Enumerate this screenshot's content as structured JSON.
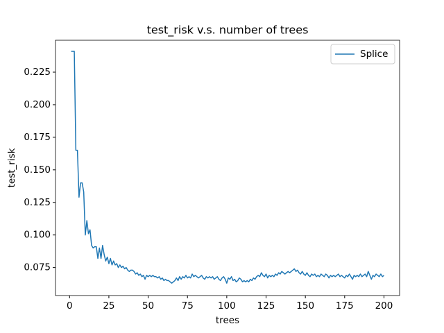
{
  "chart_data": {
    "type": "line",
    "title": "test_risk v.s. number of trees",
    "x_label": "trees",
    "y_label": "test_risk",
    "x": [
      1,
      2,
      3,
      4,
      5,
      6,
      7,
      8,
      9,
      10,
      11,
      12,
      13,
      14,
      15,
      16,
      17,
      18,
      19,
      20,
      21,
      22,
      23,
      24,
      25,
      26,
      27,
      28,
      29,
      30,
      31,
      32,
      33,
      34,
      35,
      36,
      37,
      38,
      39,
      40,
      41,
      42,
      43,
      44,
      45,
      46,
      47,
      48,
      49,
      50,
      51,
      52,
      53,
      54,
      55,
      56,
      57,
      58,
      59,
      60,
      61,
      62,
      63,
      64,
      65,
      66,
      67,
      68,
      69,
      70,
      71,
      72,
      73,
      74,
      75,
      76,
      77,
      78,
      79,
      80,
      81,
      82,
      83,
      84,
      85,
      86,
      87,
      88,
      89,
      90,
      91,
      92,
      93,
      94,
      95,
      96,
      97,
      98,
      99,
      100,
      101,
      102,
      103,
      104,
      105,
      106,
      107,
      108,
      109,
      110,
      111,
      112,
      113,
      114,
      115,
      116,
      117,
      118,
      119,
      120,
      121,
      122,
      123,
      124,
      125,
      126,
      127,
      128,
      129,
      130,
      131,
      132,
      133,
      134,
      135,
      136,
      137,
      138,
      139,
      140,
      141,
      142,
      143,
      144,
      145,
      146,
      147,
      148,
      149,
      150,
      151,
      152,
      153,
      154,
      155,
      156,
      157,
      158,
      159,
      160,
      161,
      162,
      163,
      164,
      165,
      166,
      167,
      168,
      169,
      170,
      171,
      172,
      173,
      174,
      175,
      176,
      177,
      178,
      179,
      180,
      181,
      182,
      183,
      184,
      185,
      186,
      187,
      188,
      189,
      190,
      191,
      192,
      193,
      194,
      195,
      196,
      197,
      198,
      199,
      200
    ],
    "series": [
      {
        "name": "Splice",
        "color": "#1f77b4",
        "values": [
          0.241,
          0.241,
          0.241,
          0.165,
          0.165,
          0.129,
          0.14,
          0.14,
          0.133,
          0.1,
          0.111,
          0.101,
          0.104,
          0.092,
          0.09,
          0.091,
          0.091,
          0.082,
          0.09,
          0.082,
          0.092,
          0.085,
          0.08,
          0.083,
          0.078,
          0.082,
          0.077,
          0.08,
          0.077,
          0.078,
          0.075,
          0.077,
          0.075,
          0.076,
          0.074,
          0.075,
          0.073,
          0.072,
          0.073,
          0.073,
          0.072,
          0.07,
          0.071,
          0.069,
          0.07,
          0.068,
          0.069,
          0.066,
          0.069,
          0.068,
          0.069,
          0.068,
          0.069,
          0.068,
          0.068,
          0.067,
          0.068,
          0.066,
          0.067,
          0.065,
          0.066,
          0.065,
          0.065,
          0.064,
          0.063,
          0.064,
          0.065,
          0.067,
          0.065,
          0.068,
          0.066,
          0.068,
          0.067,
          0.069,
          0.067,
          0.068,
          0.067,
          0.07,
          0.068,
          0.069,
          0.068,
          0.067,
          0.068,
          0.069,
          0.067,
          0.066,
          0.068,
          0.067,
          0.068,
          0.067,
          0.068,
          0.066,
          0.067,
          0.068,
          0.066,
          0.065,
          0.067,
          0.068,
          0.066,
          0.063,
          0.067,
          0.066,
          0.068,
          0.065,
          0.066,
          0.064,
          0.065,
          0.067,
          0.066,
          0.064,
          0.065,
          0.064,
          0.065,
          0.064,
          0.066,
          0.065,
          0.067,
          0.066,
          0.068,
          0.069,
          0.068,
          0.071,
          0.069,
          0.068,
          0.07,
          0.067,
          0.069,
          0.068,
          0.069,
          0.068,
          0.07,
          0.069,
          0.071,
          0.07,
          0.072,
          0.071,
          0.07,
          0.071,
          0.072,
          0.071,
          0.072,
          0.073,
          0.074,
          0.072,
          0.073,
          0.071,
          0.07,
          0.072,
          0.07,
          0.069,
          0.071,
          0.069,
          0.068,
          0.07,
          0.069,
          0.07,
          0.068,
          0.069,
          0.068,
          0.07,
          0.069,
          0.068,
          0.07,
          0.069,
          0.067,
          0.069,
          0.068,
          0.069,
          0.068,
          0.069,
          0.07,
          0.068,
          0.069,
          0.068,
          0.067,
          0.069,
          0.068,
          0.07,
          0.068,
          0.066,
          0.069,
          0.068,
          0.069,
          0.068,
          0.07,
          0.068,
          0.069,
          0.07,
          0.068,
          0.072,
          0.069,
          0.066,
          0.069,
          0.068,
          0.07,
          0.069,
          0.068,
          0.07,
          0.068,
          0.069
        ]
      }
    ],
    "xlim": [
      -8.95,
      209.95
    ],
    "xticks": [
      0,
      25,
      50,
      75,
      100,
      125,
      150,
      175,
      200
    ],
    "ylim": [
      0.0535,
      0.2495
    ],
    "yticks": [
      0.075,
      {
        "value": 0.1,
        "label": "0.100"
      },
      0.125,
      {
        "value": 0.15,
        "label": "0.150"
      },
      0.175,
      {
        "value": 0.2,
        "label": "0.200"
      },
      0.225
    ],
    "legend": "upper right",
    "grid": false
  }
}
